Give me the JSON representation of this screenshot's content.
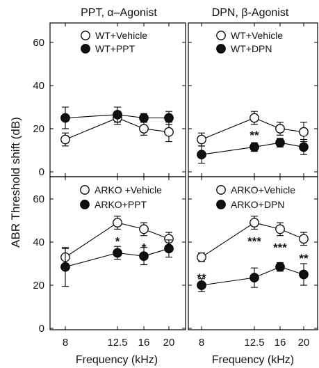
{
  "chart_data": [
    {
      "type": "line",
      "panel": "top-left",
      "title": "PPT, α–Agonist",
      "x": [
        "8",
        "12.5",
        "16",
        "20"
      ],
      "ylim": [
        0,
        70
      ],
      "yticks": [
        "0",
        "20",
        "40",
        "60"
      ],
      "legend_position": "top-left",
      "series": [
        {
          "name": "WT+Vehicle",
          "marker": "open-circle",
          "values": [
            15,
            25,
            20,
            18.5
          ],
          "errors": [
            3,
            3,
            3,
            4.5
          ]
        },
        {
          "name": "WT+PPT",
          "marker": "filled-circle",
          "values": [
            25,
            26.5,
            25,
            25
          ],
          "errors": [
            5,
            3.5,
            2,
            3
          ]
        }
      ],
      "annotations": []
    },
    {
      "type": "line",
      "panel": "top-right",
      "title": "DPN, β-Agonist",
      "x": [
        "8",
        "12.5",
        "16",
        "20"
      ],
      "ylim": [
        0,
        70
      ],
      "legend_position": "top-left",
      "series": [
        {
          "name": "WT+Vehicle",
          "marker": "open-circle",
          "values": [
            15,
            25,
            20,
            18.5
          ],
          "errors": [
            3,
            3,
            3,
            4.5
          ]
        },
        {
          "name": "WT+DPN",
          "marker": "filled-circle",
          "values": [
            8,
            11.5,
            13.5,
            11.5
          ],
          "errors": [
            4,
            2,
            2,
            3.5
          ]
        }
      ],
      "annotations": [
        {
          "x_index": 1,
          "text": "**",
          "y": 18
        }
      ]
    },
    {
      "type": "line",
      "panel": "bottom-left",
      "x": [
        "8",
        "12.5",
        "16",
        "20"
      ],
      "ylim": [
        0,
        70
      ],
      "yticks": [
        "0",
        "20",
        "40",
        "60"
      ],
      "legend_position": "top-left",
      "series": [
        {
          "name": "ARKO +Vehicle",
          "marker": "open-circle",
          "values": [
            33,
            49,
            46,
            41.5
          ],
          "errors": [
            4,
            3,
            3,
            3
          ]
        },
        {
          "name": "ARKO+PPT",
          "marker": "filled-circle",
          "values": [
            28.5,
            35,
            33.5,
            37
          ],
          "errors": [
            9,
            3,
            4,
            4
          ]
        }
      ],
      "annotations": [
        {
          "x_index": 1,
          "text": "*",
          "y": 41.5
        },
        {
          "x_index": 2,
          "text": "*",
          "y": 38.5
        }
      ]
    },
    {
      "type": "line",
      "panel": "bottom-right",
      "x": [
        "8",
        "12.5",
        "16",
        "20"
      ],
      "ylim": [
        0,
        70
      ],
      "legend_position": "top-left",
      "series": [
        {
          "name": "ARKO+Vehicle",
          "marker": "open-circle",
          "values": [
            33,
            49,
            46,
            41.5
          ],
          "errors": [
            2,
            3,
            3,
            3
          ]
        },
        {
          "name": "ARKO+DPN",
          "marker": "filled-circle",
          "values": [
            20,
            23.5,
            28.5,
            25
          ],
          "errors": [
            3,
            4.5,
            2,
            5
          ]
        }
      ],
      "annotations": [
        {
          "x_index": 0,
          "text": "**",
          "y": 24.5
        },
        {
          "x_index": 1,
          "text": "***",
          "y": 41.5
        },
        {
          "x_index": 2,
          "text": "***",
          "y": 38.5
        },
        {
          "x_index": 3,
          "text": "**",
          "y": 33.5
        }
      ]
    }
  ],
  "labels": {
    "ylabel": "ABR Threshold shift (dB)",
    "xlabel_left": "Frequency (kHz)",
    "xlabel_right": "Frequency (kHz)"
  }
}
